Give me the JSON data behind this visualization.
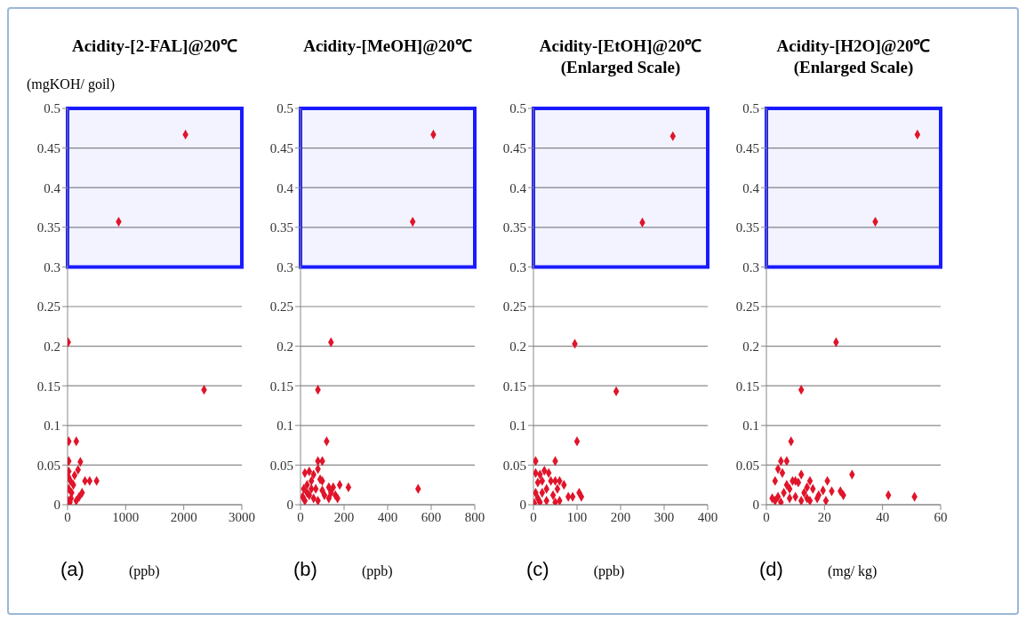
{
  "chart_data": [
    {
      "type": "scatter",
      "title": "Acidity-[2-FAL]@20℃",
      "ylabel": "(mgKOH/ goil)",
      "xlabel": "(ppb)",
      "annotations": [
        "(a)"
      ],
      "xlim": [
        0,
        3000
      ],
      "xticks": [
        0,
        1000,
        2000,
        3000
      ],
      "ylim": [
        0,
        0.5
      ],
      "yticks": [
        0,
        0.05,
        0.1,
        0.15,
        0.2,
        0.25,
        0.3,
        0.35,
        0.4,
        0.45,
        0.5
      ],
      "grid": "y",
      "marker": "diamond",
      "series": [
        {
          "color": "#e0142a",
          "x": [
            2030,
            880,
            10,
            2350,
            20,
            150,
            20,
            220,
            20,
            180,
            50,
            120,
            300,
            380,
            500,
            250,
            200,
            100,
            10,
            40,
            60,
            20,
            15,
            70,
            150
          ],
          "values": [
            0.467,
            0.357,
            0.205,
            0.145,
            0.08,
            0.08,
            0.055,
            0.054,
            0.042,
            0.044,
            0.03,
            0.037,
            0.03,
            0.03,
            0.03,
            0.015,
            0.01,
            0.025,
            0.005,
            0.003,
            0.008,
            0.02,
            0.035,
            0.015,
            0.005
          ]
        }
      ],
      "bands": [
        {
          "axis": "y",
          "from": 0.3,
          "to": 0.5,
          "color": "#1a1aff"
        }
      ]
    },
    {
      "type": "scatter",
      "title": "Acidity-[MeOH]@20℃",
      "xlabel": "(ppb)",
      "annotations": [
        "(b)"
      ],
      "xlim": [
        0,
        800
      ],
      "xticks": [
        0,
        200,
        400,
        600,
        800
      ],
      "ylim": [
        0,
        0.5
      ],
      "yticks": [
        0,
        0.05,
        0.1,
        0.15,
        0.2,
        0.25,
        0.3,
        0.35,
        0.4,
        0.45,
        0.5
      ],
      "grid": "y",
      "marker": "diamond",
      "bands": [
        {
          "axis": "y",
          "from": 0.3,
          "to": 0.5,
          "color": "#1a1aff"
        }
      ],
      "series": [
        {
          "color": "#e0142a",
          "x": [
            610,
            515,
            140,
            80,
            120,
            100,
            80,
            540,
            220,
            180,
            150,
            130,
            160,
            170,
            140,
            130,
            80,
            20,
            40,
            60,
            50,
            90,
            100,
            30,
            70,
            100,
            10,
            20,
            40,
            60,
            80,
            30,
            50,
            15,
            110
          ],
          "values": [
            0.467,
            0.357,
            0.205,
            0.145,
            0.08,
            0.055,
            0.055,
            0.02,
            0.022,
            0.025,
            0.022,
            0.022,
            0.012,
            0.008,
            0.015,
            0.008,
            0.045,
            0.04,
            0.042,
            0.038,
            0.03,
            0.032,
            0.03,
            0.025,
            0.02,
            0.018,
            0.01,
            0.005,
            0.012,
            0.008,
            0.005,
            0.015,
            0.02,
            0.02,
            0.012
          ]
        }
      ]
    },
    {
      "type": "scatter",
      "title": "Acidity-[EtOH]@20℃",
      "subtitle": "(Enlarged Scale)",
      "xlabel": "(ppb)",
      "annotations": [
        "(c)"
      ],
      "xlim": [
        0,
        400
      ],
      "xticks": [
        0,
        100,
        200,
        300,
        400
      ],
      "ylim": [
        0,
        0.5
      ],
      "yticks": [
        0,
        0.05,
        0.1,
        0.15,
        0.2,
        0.25,
        0.3,
        0.35,
        0.4,
        0.45,
        0.5
      ],
      "grid": "y",
      "marker": "diamond",
      "bands": [
        {
          "axis": "y",
          "from": 0.3,
          "to": 0.5,
          "color": "#1a1aff"
        }
      ],
      "series": [
        {
          "color": "#e0142a",
          "x": [
            320,
            250,
            95,
            190,
            100,
            50,
            5,
            5,
            25,
            35,
            15,
            60,
            50,
            70,
            40,
            20,
            10,
            30,
            55,
            105,
            110,
            80,
            90,
            60,
            45,
            20,
            5,
            10,
            30,
            50,
            2,
            15
          ],
          "values": [
            0.465,
            0.356,
            0.203,
            0.143,
            0.08,
            0.055,
            0.055,
            0.04,
            0.043,
            0.04,
            0.038,
            0.03,
            0.03,
            0.025,
            0.03,
            0.03,
            0.028,
            0.02,
            0.02,
            0.015,
            0.01,
            0.01,
            0.01,
            0.005,
            0.012,
            0.015,
            0.015,
            0.008,
            0.005,
            0.003,
            0.002,
            0.003
          ]
        }
      ]
    },
    {
      "type": "scatter",
      "title": "Acidity-[H2O]@20℃",
      "subtitle": "(Enlarged Scale)",
      "xlabel": "(mg/ kg)",
      "annotations": [
        "(d)"
      ],
      "xlim": [
        0,
        60
      ],
      "xticks": [
        0,
        20,
        40,
        60
      ],
      "ylim": [
        0,
        0.5
      ],
      "yticks": [
        0,
        0.05,
        0.1,
        0.15,
        0.2,
        0.25,
        0.3,
        0.35,
        0.4,
        0.45,
        0.5
      ],
      "grid": "y",
      "marker": "diamond",
      "bands": [
        {
          "axis": "y",
          "from": 0.3,
          "to": 0.5,
          "color": "#1a1aff"
        }
      ],
      "series": [
        {
          "color": "#e0142a",
          "x": [
            52,
            37.5,
            24,
            12,
            8.5,
            5,
            7,
            4,
            5.5,
            3,
            29.5,
            42,
            51,
            21,
            25.5,
            26.5,
            22.5,
            19.5,
            20.5,
            17.5,
            16,
            15,
            14,
            12,
            13,
            10,
            9,
            11,
            7,
            8,
            6,
            10,
            12,
            15,
            18,
            3,
            4,
            5,
            8,
            14,
            2
          ],
          "values": [
            0.467,
            0.357,
            0.205,
            0.145,
            0.08,
            0.055,
            0.055,
            0.045,
            0.04,
            0.03,
            0.038,
            0.012,
            0.01,
            0.03,
            0.017,
            0.012,
            0.017,
            0.018,
            0.005,
            0.008,
            0.02,
            0.03,
            0.022,
            0.038,
            0.015,
            0.03,
            0.03,
            0.028,
            0.025,
            0.02,
            0.015,
            0.01,
            0.005,
            0.005,
            0.012,
            0.005,
            0.01,
            0.003,
            0.008,
            0.008,
            0.008
          ]
        }
      ]
    }
  ]
}
